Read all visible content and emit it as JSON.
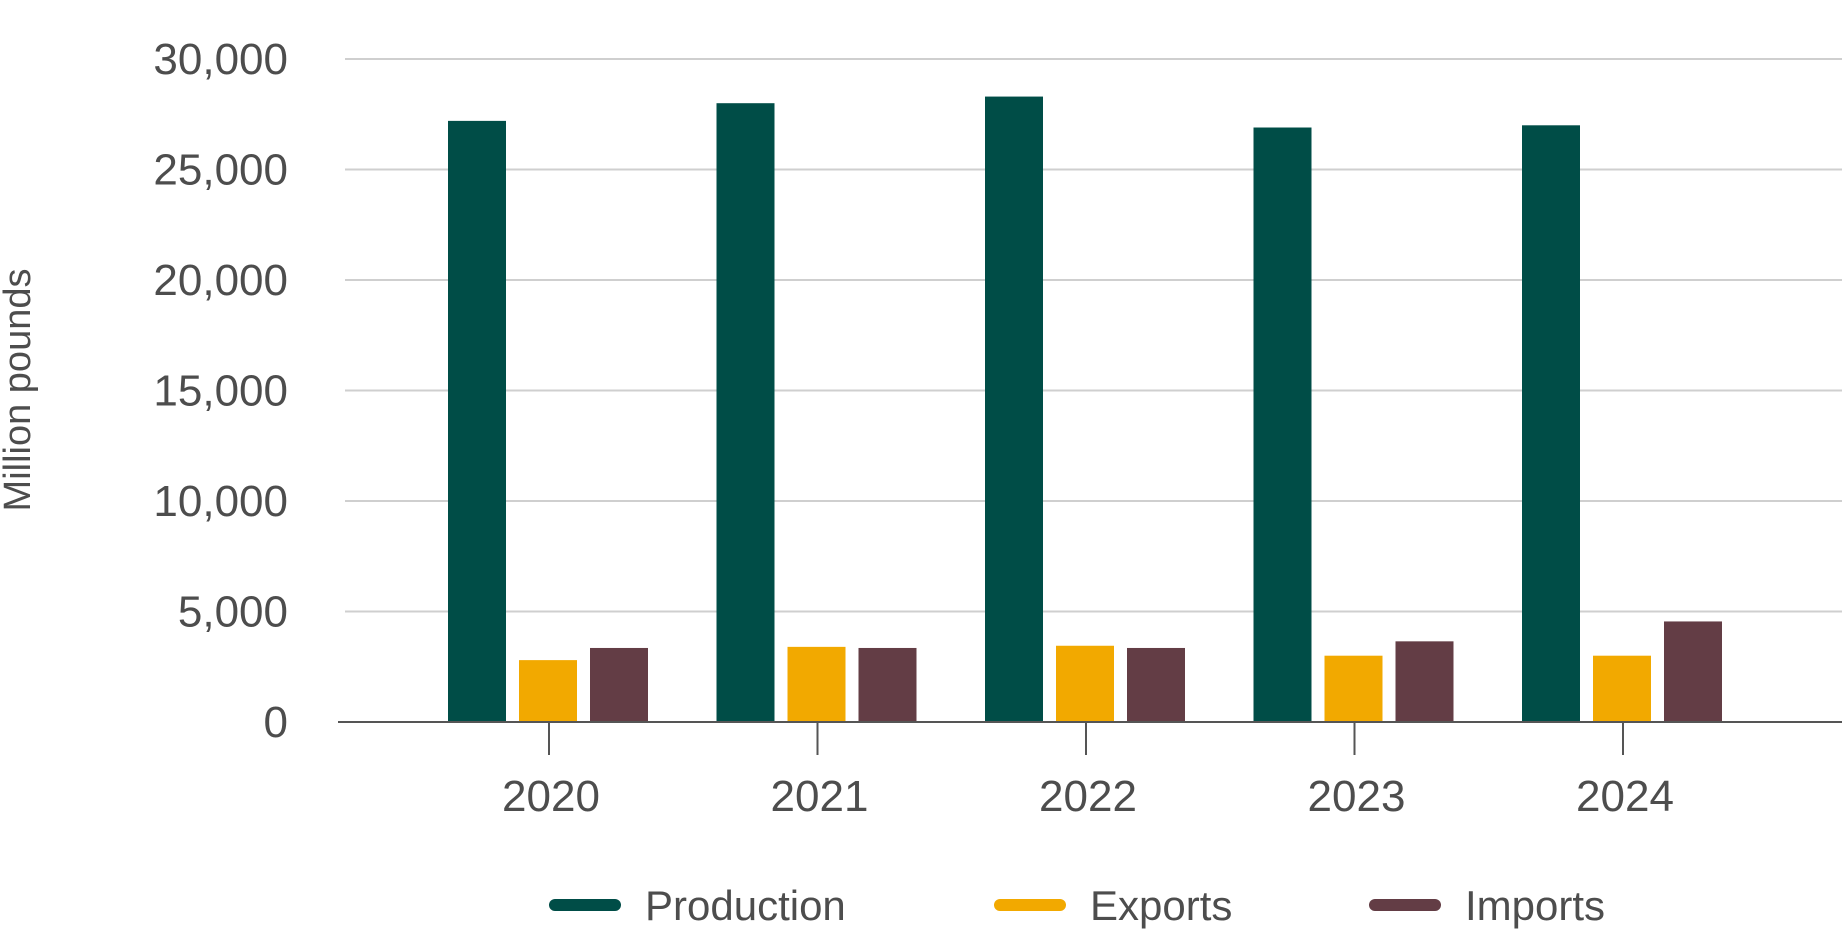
{
  "chart_data": {
    "type": "bar",
    "title": "",
    "xlabel": "",
    "ylabel": "Million pounds",
    "ylim": [
      0,
      30000
    ],
    "yticks": [
      0,
      5000,
      10000,
      15000,
      20000,
      25000,
      30000
    ],
    "ytick_labels": [
      "0",
      "5,000",
      "10,000",
      "15,000",
      "20,000",
      "25,000",
      "30,000"
    ],
    "grid": true,
    "legend_position": "bottom",
    "categories": [
      "2020",
      "2021",
      "2022",
      "2023",
      "2024"
    ],
    "series": [
      {
        "name": "Production",
        "color": "#004d47",
        "values": [
          27200,
          28000,
          28300,
          26900,
          27000
        ]
      },
      {
        "name": "Exports",
        "color": "#f2a900",
        "values": [
          2800,
          3400,
          3450,
          3000,
          3000
        ]
      },
      {
        "name": "Imports",
        "color": "#633d45",
        "values": [
          3350,
          3350,
          3350,
          3650,
          4550
        ]
      }
    ]
  }
}
